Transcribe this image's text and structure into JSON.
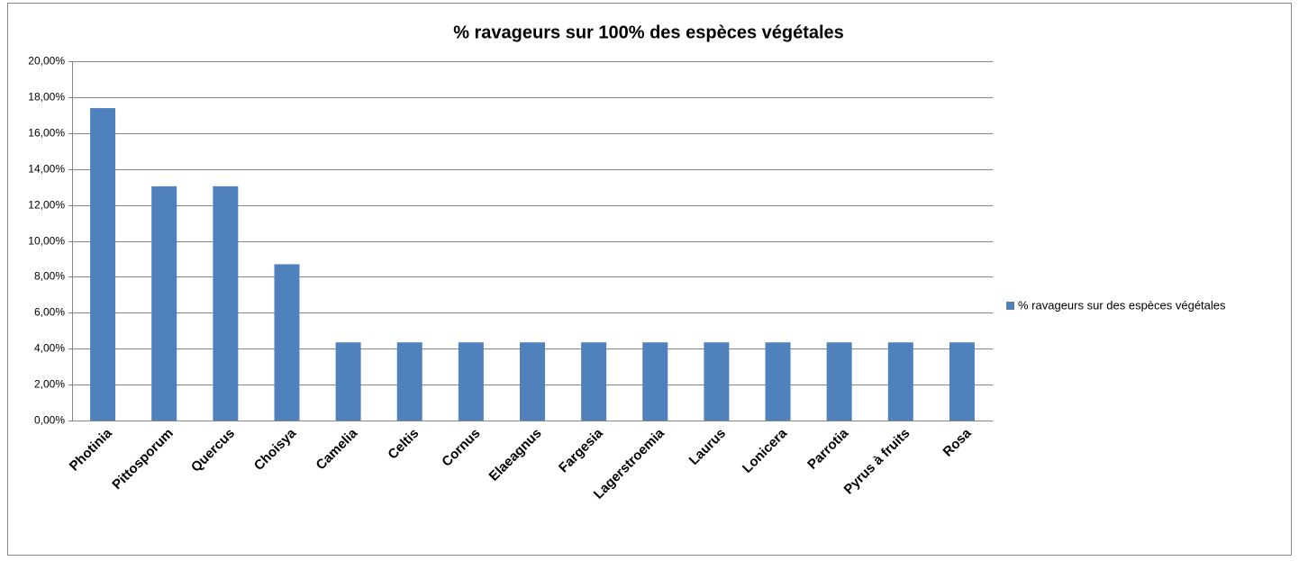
{
  "chart_data": {
    "type": "bar",
    "title": "% ravageurs sur 100% des espèces végétales",
    "categories": [
      "Photinia",
      "Pittosporum",
      "Quercus",
      "Choisya",
      "Camelia",
      "Celtis",
      "Cornus",
      "Elaeagnus",
      "Fargesia",
      "Lagerstroemia",
      "Laurus",
      "Lonicera",
      "Parrotia",
      "Pyrus à fruits",
      "Rosa"
    ],
    "series": [
      {
        "name": "% ravageurs sur des espèces végétales",
        "color": "#4f81bd",
        "values": [
          17.39,
          13.04,
          13.04,
          8.7,
          4.35,
          4.35,
          4.35,
          4.35,
          4.35,
          4.35,
          4.35,
          4.35,
          4.35,
          4.35,
          4.35
        ]
      }
    ],
    "ylim": [
      0,
      20
    ],
    "yticks": [
      {
        "value": 0,
        "label": "0,00%"
      },
      {
        "value": 2,
        "label": "2,00%"
      },
      {
        "value": 4,
        "label": "4,00%"
      },
      {
        "value": 6,
        "label": "6,00%"
      },
      {
        "value": 8,
        "label": "8,00%"
      },
      {
        "value": 10,
        "label": "10,00%"
      },
      {
        "value": 12,
        "label": "12,00%"
      },
      {
        "value": 14,
        "label": "14,00%"
      },
      {
        "value": 16,
        "label": "16,00%"
      },
      {
        "value": 18,
        "label": "18,00%"
      },
      {
        "value": 20,
        "label": "20,00%"
      }
    ],
    "grid": true,
    "legend": "right"
  }
}
